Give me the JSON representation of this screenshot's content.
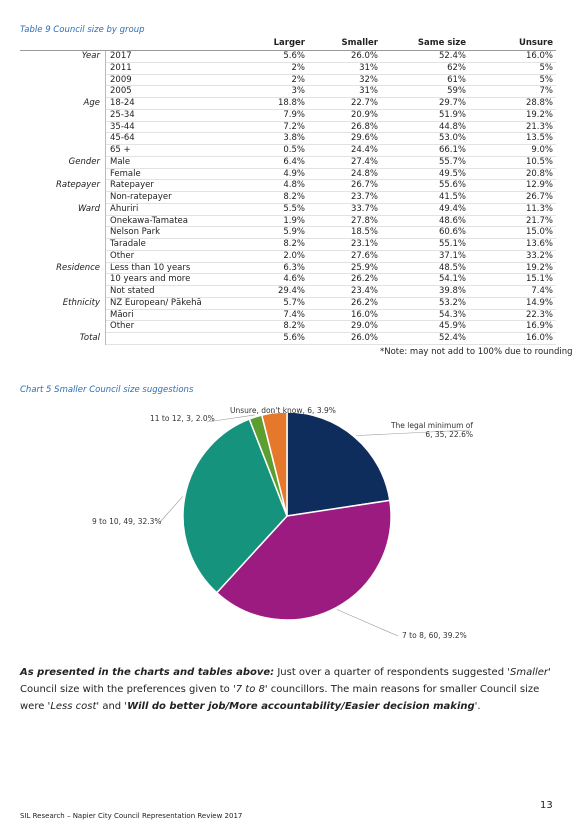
{
  "table": {
    "caption": "Table 9 Council size by group",
    "columns": [
      "Larger",
      "Smaller",
      "Same size",
      "Unsure"
    ],
    "groups": [
      {
        "name": "Year",
        "rows": [
          {
            "label": "2017",
            "values": [
              "5.6%",
              "26.0%",
              "52.4%",
              "16.0%"
            ]
          },
          {
            "label": "2011",
            "values": [
              "2%",
              "31%",
              "62%",
              "5%"
            ]
          },
          {
            "label": "2009",
            "values": [
              "2%",
              "32%",
              "61%",
              "5%"
            ]
          },
          {
            "label": "2005",
            "values": [
              "3%",
              "31%",
              "59%",
              "7%"
            ]
          }
        ]
      },
      {
        "name": "Age",
        "rows": [
          {
            "label": "18-24",
            "values": [
              "18.8%",
              "22.7%",
              "29.7%",
              "28.8%"
            ]
          },
          {
            "label": "25-34",
            "values": [
              "7.9%",
              "20.9%",
              "51.9%",
              "19.2%"
            ]
          },
          {
            "label": "35-44",
            "values": [
              "7.2%",
              "26.8%",
              "44.8%",
              "21.3%"
            ]
          },
          {
            "label": "45-64",
            "values": [
              "3.8%",
              "29.6%",
              "53.0%",
              "13.5%"
            ]
          },
          {
            "label": "65 +",
            "values": [
              "0.5%",
              "24.4%",
              "66.1%",
              "9.0%"
            ]
          }
        ]
      },
      {
        "name": "Gender",
        "rows": [
          {
            "label": "Male",
            "values": [
              "6.4%",
              "27.4%",
              "55.7%",
              "10.5%"
            ]
          },
          {
            "label": "Female",
            "values": [
              "4.9%",
              "24.8%",
              "49.5%",
              "20.8%"
            ]
          }
        ]
      },
      {
        "name": "Ratepayer",
        "rows": [
          {
            "label": "Ratepayer",
            "values": [
              "4.8%",
              "26.7%",
              "55.6%",
              "12.9%"
            ]
          },
          {
            "label": "Non-ratepayer",
            "values": [
              "8.2%",
              "23.7%",
              "41.5%",
              "26.7%"
            ]
          }
        ]
      },
      {
        "name": "Ward",
        "rows": [
          {
            "label": "Ahuriri",
            "values": [
              "5.5%",
              "33.7%",
              "49.4%",
              "11.3%"
            ]
          },
          {
            "label": "Onekawa-Tamatea",
            "values": [
              "1.9%",
              "27.8%",
              "48.6%",
              "21.7%"
            ]
          },
          {
            "label": "Nelson Park",
            "values": [
              "5.9%",
              "18.5%",
              "60.6%",
              "15.0%"
            ]
          },
          {
            "label": "Taradale",
            "values": [
              "8.2%",
              "23.1%",
              "55.1%",
              "13.6%"
            ]
          },
          {
            "label": "Other",
            "values": [
              "2.0%",
              "27.6%",
              "37.1%",
              "33.2%"
            ]
          }
        ]
      },
      {
        "name": "Residence",
        "rows": [
          {
            "label": "Less than 10 years",
            "values": [
              "6.3%",
              "25.9%",
              "48.5%",
              "19.2%"
            ]
          },
          {
            "label": "10 years and more",
            "values": [
              "4.6%",
              "26.2%",
              "54.1%",
              "15.1%"
            ]
          },
          {
            "label": "Not stated",
            "values": [
              "29.4%",
              "23.4%",
              "39.8%",
              "7.4%"
            ]
          }
        ]
      },
      {
        "name": "Ethnicity",
        "rows": [
          {
            "label": "NZ European/ Pākehā",
            "values": [
              "5.7%",
              "26.2%",
              "53.2%",
              "14.9%"
            ]
          },
          {
            "label": "Māori",
            "values": [
              "7.4%",
              "16.0%",
              "54.3%",
              "22.3%"
            ]
          },
          {
            "label": "Other",
            "values": [
              "8.2%",
              "29.0%",
              "45.9%",
              "16.9%"
            ]
          }
        ]
      },
      {
        "name": "Total",
        "rows": [
          {
            "values": [
              "5.6%",
              "26.0%",
              "52.4%",
              "16.0%"
            ]
          }
        ]
      }
    ],
    "note": "*Note: may not add to 100% due to rounding"
  },
  "chart_data": {
    "type": "pie",
    "title": "Chart 5 Smaller Council size suggestions",
    "values": [
      22.6,
      39.2,
      32.3,
      2.0,
      3.9
    ],
    "value_labels": [
      "The legal minimum of 6, 35, 22.6%",
      "7 to 8, 60, 39.2%",
      "9 to 10, 49, 32.3%",
      "11 to 12, 3, 2.0%",
      "Unsure, don't know, 6, 3.9%"
    ],
    "colors": [
      "#0e2d5c",
      "#9b1b80",
      "#15937c",
      "#5c9e30",
      "#e6782c"
    ]
  },
  "paragraph": [
    "As presented in the charts and tables above:",
    " Just over a quarter of respondents suggested '",
    "Smaller",
    "' Council size with the preferences given to '",
    "7 to 8",
    "' councillors. The main reasons for smaller Council size were '",
    "Less cost",
    "' and '",
    "Will do better job/More accountability/Easier decision making",
    "'."
  ],
  "footer": {
    "text": "SIL Research – Napier City Council Representation Review 2017",
    "page": "13"
  }
}
